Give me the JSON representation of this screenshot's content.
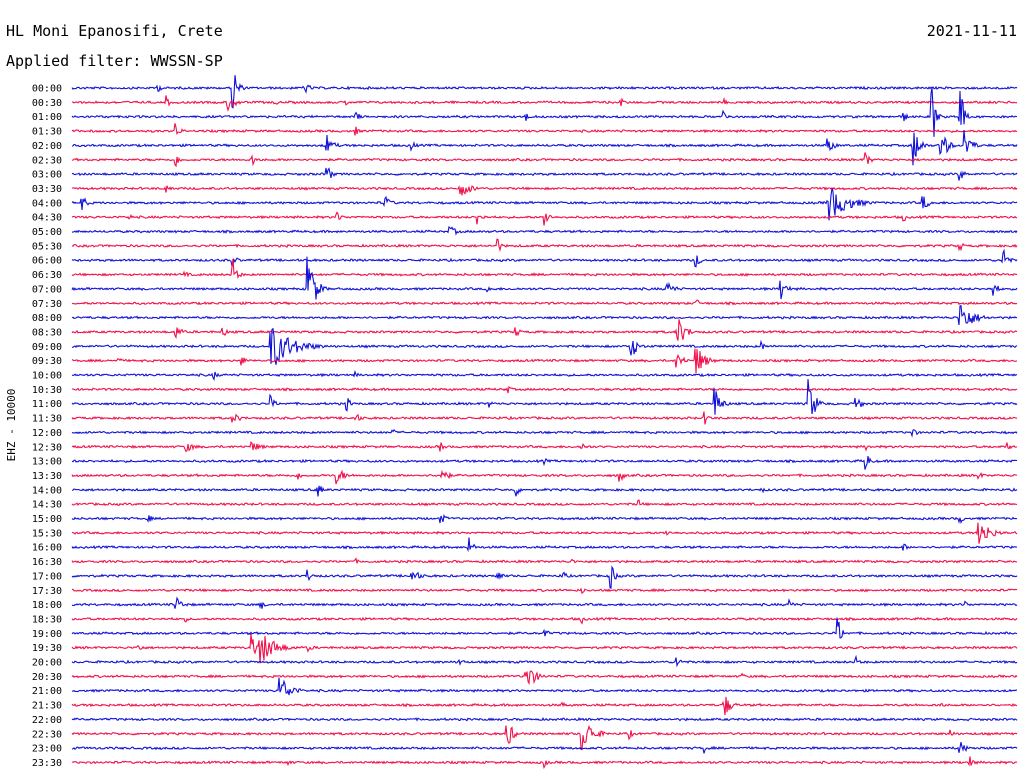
{
  "header": {
    "station": "HL Moni Epanosifi, Crete",
    "filter": "Applied filter: WWSSN-SP",
    "date": "2021-11-11",
    "channel_label": "EHZ - 10000"
  },
  "colors": {
    "blue": "#1010d8",
    "red": "#f0104a",
    "text": "#000000",
    "background": "#ffffff"
  },
  "chart_data": {
    "type": "line",
    "title": "HL Moni Epanosifi, Crete",
    "subtitle": "Applied filter: WWSSN-SP",
    "ylabel": "EHZ - 10000",
    "row_labels": [
      "00:00",
      "00:30",
      "01:00",
      "01:30",
      "02:00",
      "02:30",
      "03:00",
      "03:30",
      "04:00",
      "04:30",
      "05:00",
      "05:30",
      "06:00",
      "06:30",
      "07:00",
      "07:30",
      "08:00",
      "08:30",
      "09:00",
      "09:30",
      "10:00",
      "10:30",
      "11:00",
      "11:30",
      "12:00",
      "12:30",
      "13:00",
      "13:30",
      "14:00",
      "14:30",
      "15:00",
      "15:30",
      "16:00",
      "16:30",
      "17:00",
      "17:30",
      "18:00",
      "18:30",
      "19:00",
      "19:30",
      "20:00",
      "20:30",
      "21:00",
      "21:30",
      "22:00",
      "22:30",
      "23:00",
      "23:30"
    ],
    "row_color_cycle": [
      "blue",
      "red"
    ],
    "row_minutes": 30,
    "events": [
      {
        "row": 0,
        "t": 0.09,
        "a": 0.6,
        "d": 0.004
      },
      {
        "row": 0,
        "t": 0.17,
        "a": 3.6,
        "d": 0.004
      },
      {
        "row": 0,
        "t": 0.245,
        "a": 0.8,
        "d": 0.006
      },
      {
        "row": 1,
        "t": 0.165,
        "a": 1.0,
        "d": 0.008
      },
      {
        "row": 1,
        "t": 0.1,
        "a": 0.8,
        "d": 0.003
      },
      {
        "row": 1,
        "t": 0.215,
        "a": 0.4,
        "d": 0.003
      },
      {
        "row": 1,
        "t": 0.29,
        "a": 0.4,
        "d": 0.003
      },
      {
        "row": 1,
        "t": 0.58,
        "a": 0.6,
        "d": 0.004
      },
      {
        "row": 1,
        "t": 0.69,
        "a": 0.4,
        "d": 0.003
      },
      {
        "row": 2,
        "t": 0.3,
        "a": 0.8,
        "d": 0.004
      },
      {
        "row": 2,
        "t": 0.48,
        "a": 0.6,
        "d": 0.004
      },
      {
        "row": 2,
        "t": 0.69,
        "a": 0.7,
        "d": 0.004
      },
      {
        "row": 2,
        "t": 0.88,
        "a": 0.6,
        "d": 0.004
      },
      {
        "row": 2,
        "t": 0.91,
        "a": 5.0,
        "d": 0.003
      },
      {
        "row": 2,
        "t": 0.94,
        "a": 4.5,
        "d": 0.003
      },
      {
        "row": 3,
        "t": 0.11,
        "a": 1.0,
        "d": 0.004
      },
      {
        "row": 3,
        "t": 0.3,
        "a": 0.6,
        "d": 0.003
      },
      {
        "row": 4,
        "t": 0.27,
        "a": 1.2,
        "d": 0.006
      },
      {
        "row": 4,
        "t": 0.36,
        "a": 0.6,
        "d": 0.004
      },
      {
        "row": 4,
        "t": 0.8,
        "a": 1.2,
        "d": 0.005
      },
      {
        "row": 4,
        "t": 0.89,
        "a": 2.5,
        "d": 0.006
      },
      {
        "row": 4,
        "t": 0.92,
        "a": 2.0,
        "d": 0.006
      },
      {
        "row": 4,
        "t": 0.945,
        "a": 2.0,
        "d": 0.006
      },
      {
        "row": 5,
        "t": 0.11,
        "a": 0.8,
        "d": 0.004
      },
      {
        "row": 5,
        "t": 0.19,
        "a": 0.8,
        "d": 0.005
      },
      {
        "row": 5,
        "t": 0.84,
        "a": 1.0,
        "d": 0.004
      },
      {
        "row": 6,
        "t": 0.27,
        "a": 1.2,
        "d": 0.004
      },
      {
        "row": 6,
        "t": 0.94,
        "a": 0.8,
        "d": 0.004
      },
      {
        "row": 7,
        "t": 0.1,
        "a": 0.8,
        "d": 0.004
      },
      {
        "row": 7,
        "t": 0.41,
        "a": 1.0,
        "d": 0.012
      },
      {
        "row": 8,
        "t": 0.01,
        "a": 1.0,
        "d": 0.005
      },
      {
        "row": 8,
        "t": 0.33,
        "a": 1.0,
        "d": 0.006
      },
      {
        "row": 8,
        "t": 0.8,
        "a": 2.2,
        "d": 0.018
      },
      {
        "row": 8,
        "t": 0.9,
        "a": 1.0,
        "d": 0.006
      },
      {
        "row": 9,
        "t": 0.06,
        "a": 0.6,
        "d": 0.003
      },
      {
        "row": 9,
        "t": 0.28,
        "a": 0.6,
        "d": 0.006
      },
      {
        "row": 9,
        "t": 0.43,
        "a": 1.0,
        "d": 0.004
      },
      {
        "row": 9,
        "t": 0.5,
        "a": 1.4,
        "d": 0.004
      },
      {
        "row": 9,
        "t": 0.88,
        "a": 0.6,
        "d": 0.003
      },
      {
        "row": 10,
        "t": 0.4,
        "a": 0.6,
        "d": 0.008
      },
      {
        "row": 11,
        "t": 0.45,
        "a": 1.0,
        "d": 0.004
      },
      {
        "row": 11,
        "t": 0.94,
        "a": 0.6,
        "d": 0.003
      },
      {
        "row": 12,
        "t": 0.17,
        "a": 0.8,
        "d": 0.004
      },
      {
        "row": 12,
        "t": 0.66,
        "a": 1.0,
        "d": 0.004
      },
      {
        "row": 12,
        "t": 0.985,
        "a": 2.0,
        "d": 0.004
      },
      {
        "row": 13,
        "t": 0.12,
        "a": 0.4,
        "d": 0.003
      },
      {
        "row": 13,
        "t": 0.17,
        "a": 2.0,
        "d": 0.004
      },
      {
        "row": 14,
        "t": 0.25,
        "a": 5.0,
        "d": 0.006
      },
      {
        "row": 14,
        "t": 0.44,
        "a": 0.6,
        "d": 0.003
      },
      {
        "row": 14,
        "t": 0.63,
        "a": 0.8,
        "d": 0.008
      },
      {
        "row": 14,
        "t": 0.75,
        "a": 1.6,
        "d": 0.005
      },
      {
        "row": 14,
        "t": 0.975,
        "a": 1.2,
        "d": 0.004
      },
      {
        "row": 15,
        "t": 0.66,
        "a": 0.6,
        "d": 0.004
      },
      {
        "row": 16,
        "t": 0.94,
        "a": 2.0,
        "d": 0.012
      },
      {
        "row": 17,
        "t": 0.11,
        "a": 0.8,
        "d": 0.006
      },
      {
        "row": 17,
        "t": 0.16,
        "a": 0.6,
        "d": 0.004
      },
      {
        "row": 17,
        "t": 0.47,
        "a": 0.6,
        "d": 0.004
      },
      {
        "row": 17,
        "t": 0.64,
        "a": 2.0,
        "d": 0.008
      },
      {
        "row": 18,
        "t": 0.21,
        "a": 2.8,
        "d": 0.02
      },
      {
        "row": 18,
        "t": 0.59,
        "a": 2.0,
        "d": 0.006
      },
      {
        "row": 18,
        "t": 0.73,
        "a": 0.6,
        "d": 0.003
      },
      {
        "row": 19,
        "t": 0.18,
        "a": 0.6,
        "d": 0.004
      },
      {
        "row": 19,
        "t": 0.64,
        "a": 1.2,
        "d": 0.006
      },
      {
        "row": 19,
        "t": 0.66,
        "a": 2.0,
        "d": 0.008
      },
      {
        "row": 19,
        "t": 0.05,
        "a": 0.4,
        "d": 0.003
      },
      {
        "row": 20,
        "t": 0.15,
        "a": 0.6,
        "d": 0.004
      },
      {
        "row": 20,
        "t": 0.3,
        "a": 0.4,
        "d": 0.003
      },
      {
        "row": 21,
        "t": 0.46,
        "a": 0.6,
        "d": 0.004
      },
      {
        "row": 22,
        "t": 0.21,
        "a": 1.0,
        "d": 0.004
      },
      {
        "row": 22,
        "t": 0.29,
        "a": 1.0,
        "d": 0.004
      },
      {
        "row": 22,
        "t": 0.44,
        "a": 0.6,
        "d": 0.004
      },
      {
        "row": 22,
        "t": 0.68,
        "a": 2.0,
        "d": 0.006
      },
      {
        "row": 22,
        "t": 0.78,
        "a": 2.8,
        "d": 0.006
      },
      {
        "row": 22,
        "t": 0.83,
        "a": 1.0,
        "d": 0.005
      },
      {
        "row": 23,
        "t": 0.17,
        "a": 0.6,
        "d": 0.008
      },
      {
        "row": 23,
        "t": 0.3,
        "a": 0.6,
        "d": 0.006
      },
      {
        "row": 23,
        "t": 0.67,
        "a": 0.8,
        "d": 0.004
      },
      {
        "row": 24,
        "t": 0.34,
        "a": 0.4,
        "d": 0.003
      },
      {
        "row": 24,
        "t": 0.89,
        "a": 0.6,
        "d": 0.004
      },
      {
        "row": 25,
        "t": 0.12,
        "a": 0.6,
        "d": 0.01
      },
      {
        "row": 25,
        "t": 0.19,
        "a": 0.6,
        "d": 0.01
      },
      {
        "row": 25,
        "t": 0.39,
        "a": 0.6,
        "d": 0.004
      },
      {
        "row": 25,
        "t": 0.54,
        "a": 0.4,
        "d": 0.008
      },
      {
        "row": 25,
        "t": 0.84,
        "a": 0.6,
        "d": 0.003
      },
      {
        "row": 25,
        "t": 0.99,
        "a": 0.6,
        "d": 0.003
      },
      {
        "row": 26,
        "t": 0.5,
        "a": 0.4,
        "d": 0.004
      },
      {
        "row": 26,
        "t": 0.84,
        "a": 1.2,
        "d": 0.004
      },
      {
        "row": 27,
        "t": 0.24,
        "a": 0.6,
        "d": 0.003
      },
      {
        "row": 27,
        "t": 0.28,
        "a": 1.0,
        "d": 0.008
      },
      {
        "row": 27,
        "t": 0.39,
        "a": 1.2,
        "d": 0.006
      },
      {
        "row": 27,
        "t": 0.58,
        "a": 0.8,
        "d": 0.004
      },
      {
        "row": 27,
        "t": 0.96,
        "a": 0.6,
        "d": 0.003
      },
      {
        "row": 28,
        "t": 0.26,
        "a": 1.0,
        "d": 0.004
      },
      {
        "row": 28,
        "t": 0.47,
        "a": 0.8,
        "d": 0.004
      },
      {
        "row": 28,
        "t": 0.73,
        "a": 0.4,
        "d": 0.003
      },
      {
        "row": 29,
        "t": 0.6,
        "a": 0.6,
        "d": 0.003
      },
      {
        "row": 30,
        "t": 0.08,
        "a": 0.6,
        "d": 0.004
      },
      {
        "row": 30,
        "t": 0.39,
        "a": 0.6,
        "d": 0.006
      },
      {
        "row": 30,
        "t": 0.94,
        "a": 0.6,
        "d": 0.003
      },
      {
        "row": 31,
        "t": 0.63,
        "a": 0.4,
        "d": 0.003
      },
      {
        "row": 31,
        "t": 0.96,
        "a": 1.8,
        "d": 0.01
      },
      {
        "row": 32,
        "t": 0.42,
        "a": 1.2,
        "d": 0.004
      },
      {
        "row": 32,
        "t": 0.88,
        "a": 0.6,
        "d": 0.003
      },
      {
        "row": 33,
        "t": 0.3,
        "a": 0.4,
        "d": 0.003
      },
      {
        "row": 33,
        "t": 0.53,
        "a": 0.4,
        "d": 0.003
      },
      {
        "row": 34,
        "t": 0.25,
        "a": 0.8,
        "d": 0.004
      },
      {
        "row": 34,
        "t": 0.36,
        "a": 0.8,
        "d": 0.008
      },
      {
        "row": 34,
        "t": 0.45,
        "a": 0.8,
        "d": 0.004
      },
      {
        "row": 34,
        "t": 0.52,
        "a": 0.6,
        "d": 0.004
      },
      {
        "row": 34,
        "t": 0.57,
        "a": 1.6,
        "d": 0.004
      },
      {
        "row": 35,
        "t": 0.42,
        "a": 0.4,
        "d": 0.003
      },
      {
        "row": 35,
        "t": 0.54,
        "a": 0.4,
        "d": 0.003
      },
      {
        "row": 36,
        "t": 0.11,
        "a": 1.0,
        "d": 0.006
      },
      {
        "row": 36,
        "t": 0.2,
        "a": 0.6,
        "d": 0.004
      },
      {
        "row": 36,
        "t": 0.76,
        "a": 0.6,
        "d": 0.004
      },
      {
        "row": 36,
        "t": 0.945,
        "a": 0.6,
        "d": 0.003
      },
      {
        "row": 37,
        "t": 0.12,
        "a": 0.4,
        "d": 0.003
      },
      {
        "row": 37,
        "t": 0.54,
        "a": 0.5,
        "d": 0.004
      },
      {
        "row": 38,
        "t": 0.5,
        "a": 0.6,
        "d": 0.004
      },
      {
        "row": 38,
        "t": 0.81,
        "a": 2.0,
        "d": 0.004
      },
      {
        "row": 39,
        "t": 0.07,
        "a": 0.6,
        "d": 0.004
      },
      {
        "row": 39,
        "t": 0.19,
        "a": 1.6,
        "d": 0.012
      },
      {
        "row": 39,
        "t": 0.2,
        "a": 2.0,
        "d": 0.014
      },
      {
        "row": 39,
        "t": 0.25,
        "a": 0.6,
        "d": 0.004
      },
      {
        "row": 40,
        "t": 0.41,
        "a": 0.6,
        "d": 0.004
      },
      {
        "row": 40,
        "t": 0.64,
        "a": 0.8,
        "d": 0.004
      },
      {
        "row": 40,
        "t": 0.83,
        "a": 0.6,
        "d": 0.004
      },
      {
        "row": 41,
        "t": 0.48,
        "a": 2.0,
        "d": 0.008
      },
      {
        "row": 41,
        "t": 0.71,
        "a": 0.4,
        "d": 0.003
      },
      {
        "row": 42,
        "t": 0.22,
        "a": 1.8,
        "d": 0.01
      },
      {
        "row": 42,
        "t": 0.37,
        "a": 0.4,
        "d": 0.003
      },
      {
        "row": 43,
        "t": 0.69,
        "a": 1.6,
        "d": 0.006
      },
      {
        "row": 43,
        "t": 0.52,
        "a": 0.4,
        "d": 0.003
      },
      {
        "row": 43,
        "t": 0.92,
        "a": 0.4,
        "d": 0.003
      },
      {
        "row": 44,
        "t": 0.62,
        "a": 0.4,
        "d": 0.003
      },
      {
        "row": 45,
        "t": 0.46,
        "a": 1.8,
        "d": 0.006
      },
      {
        "row": 45,
        "t": 0.54,
        "a": 2.2,
        "d": 0.01
      },
      {
        "row": 45,
        "t": 0.59,
        "a": 0.6,
        "d": 0.004
      },
      {
        "row": 45,
        "t": 0.93,
        "a": 0.6,
        "d": 0.003
      },
      {
        "row": 46,
        "t": 0.67,
        "a": 0.6,
        "d": 0.003
      },
      {
        "row": 46,
        "t": 0.94,
        "a": 0.8,
        "d": 0.006
      },
      {
        "row": 47,
        "t": 0.23,
        "a": 0.4,
        "d": 0.003
      },
      {
        "row": 47,
        "t": 0.5,
        "a": 0.6,
        "d": 0.003
      },
      {
        "row": 47,
        "t": 0.95,
        "a": 0.8,
        "d": 0.004
      }
    ]
  }
}
